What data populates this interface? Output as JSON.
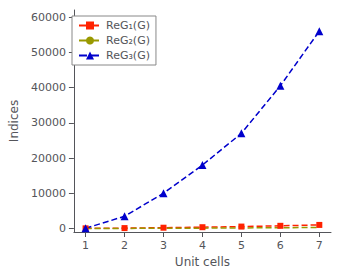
{
  "chart_data": {
    "type": "line",
    "x": [
      1,
      2,
      3,
      4,
      5,
      6,
      7
    ],
    "series": [
      {
        "name": "ReG₁(G)",
        "color": "#ff2200",
        "marker": "square",
        "line_style": "dashed",
        "values": [
          36,
          108,
          216,
          360,
          540,
          756,
          1008
        ]
      },
      {
        "name": "ReG₂(G)",
        "color": "#999900",
        "marker": "none",
        "line_style": "dashed",
        "values": [
          6,
          24,
          54,
          96,
          150,
          216,
          294
        ]
      },
      {
        "name": "ReG₃(G)",
        "color": "#0000cc",
        "marker": "triangle",
        "line_style": "dashed",
        "values": [
          54,
          3456,
          10000,
          18000,
          27000,
          40500,
          56000
        ]
      }
    ],
    "xlabel": "Unit cells",
    "ylabel": "Indices",
    "xlim": [
      0.7,
      7.3
    ],
    "ylim": [
      -1000,
      62000
    ],
    "xticks": [
      1,
      2,
      3,
      4,
      5,
      6,
      7
    ],
    "yticks": [
      0,
      10000,
      20000,
      30000,
      40000,
      50000,
      60000
    ],
    "grid": false,
    "legend": "upper left"
  }
}
